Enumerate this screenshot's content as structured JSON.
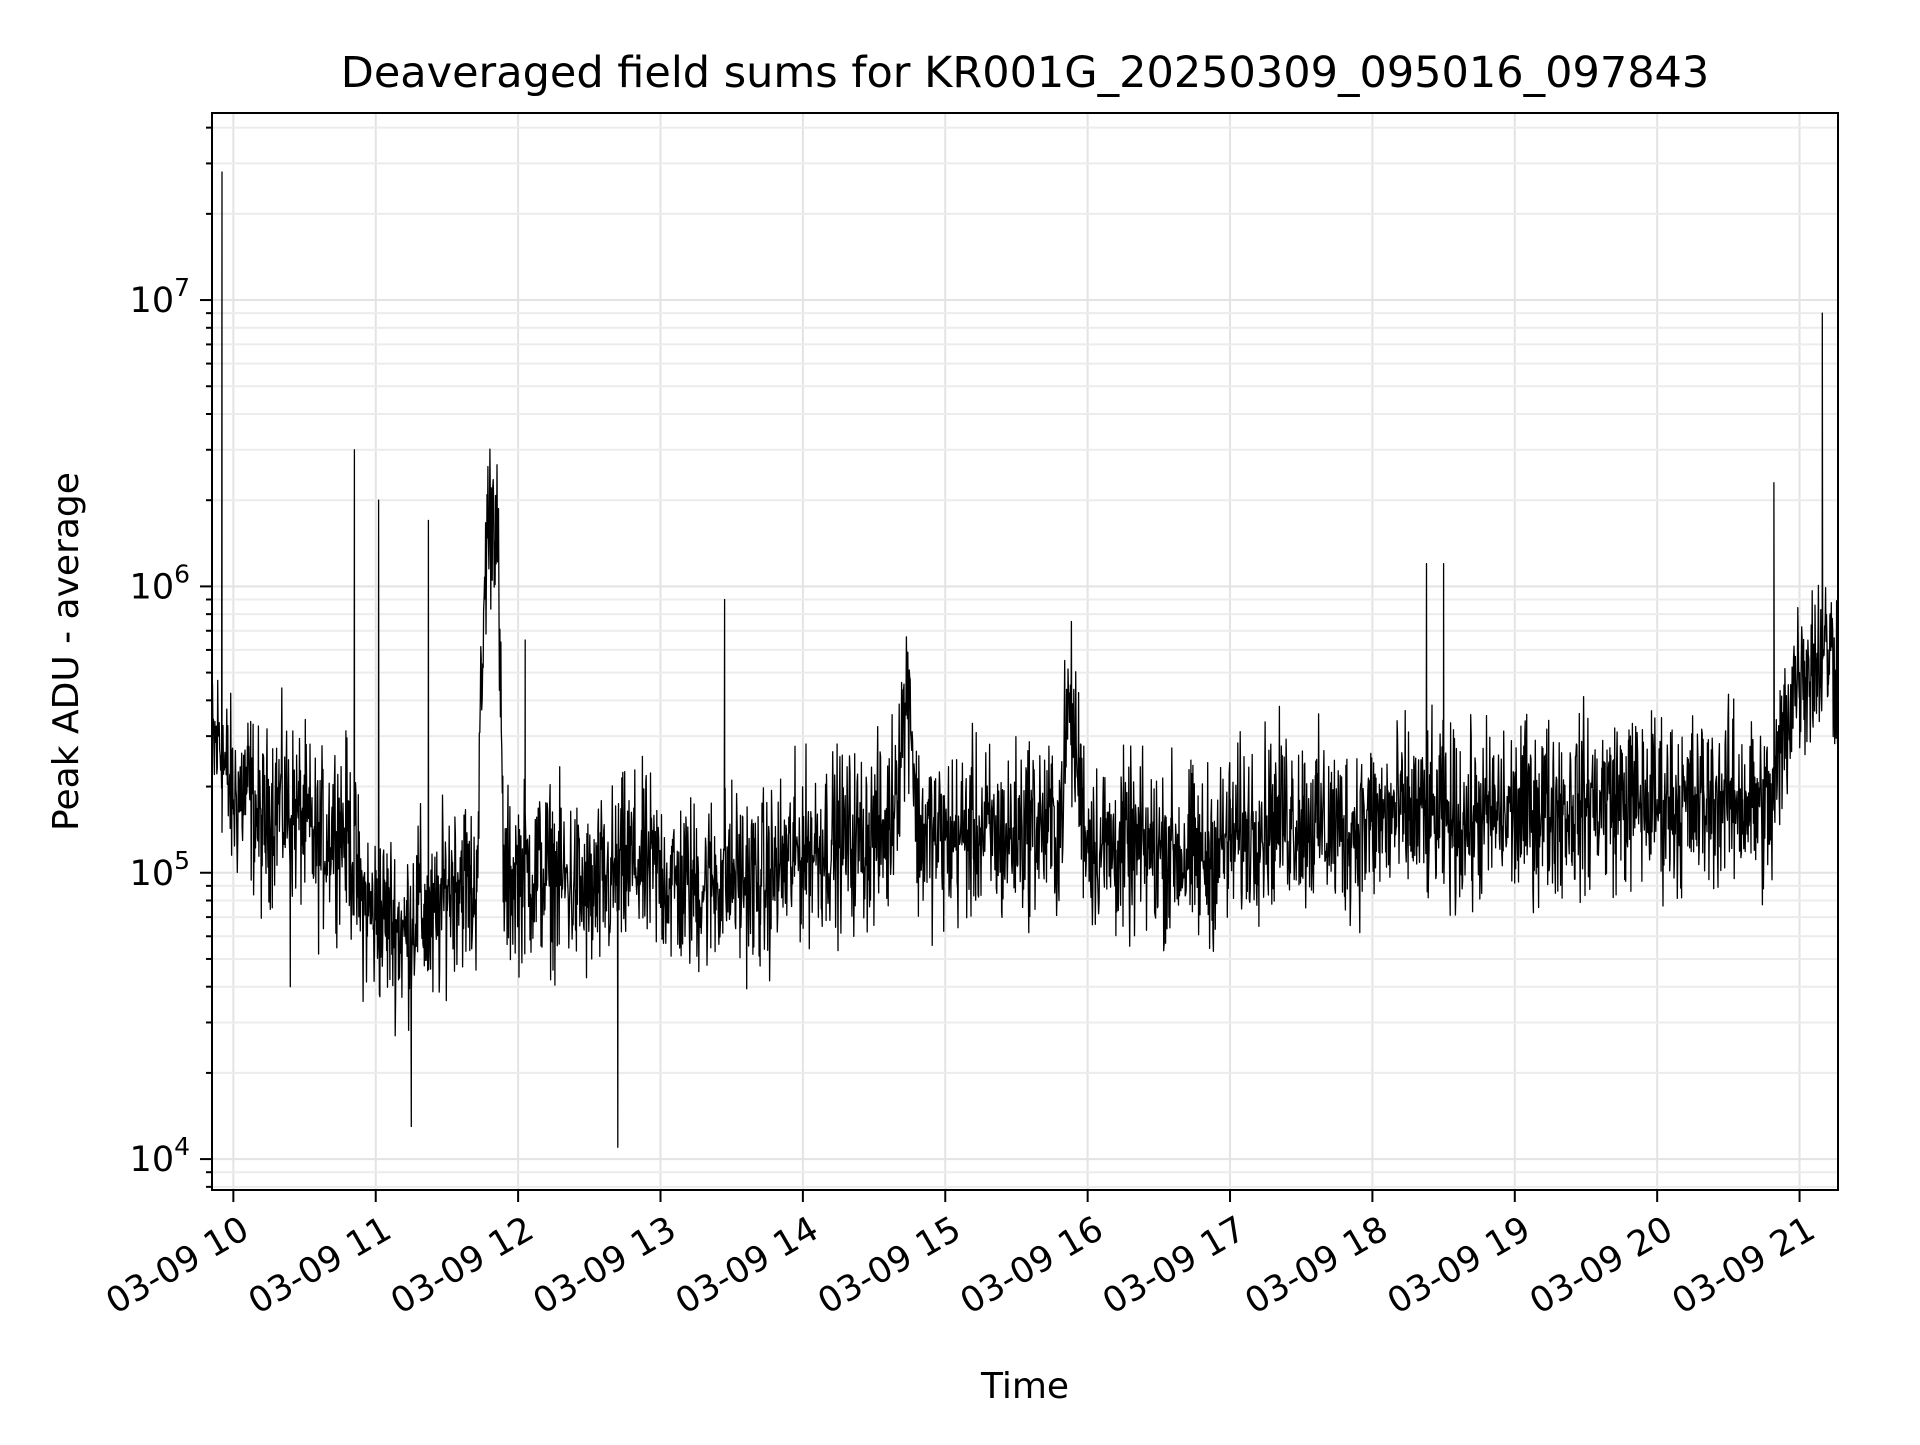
{
  "chart_data": {
    "type": "line",
    "title": "Deaveraged field sums for KR001G_20250309_095016_097843",
    "xlabel": "Time",
    "ylabel": "Peak ADU - average",
    "yscale": "log",
    "grid": true,
    "grid_minor": true,
    "legend": "none",
    "x_tick_labels": [
      "03-09 10",
      "03-09 11",
      "03-09 12",
      "03-09 13",
      "03-09 14",
      "03-09 15",
      "03-09 16",
      "03-09 17",
      "03-09 18",
      "03-09 19",
      "03-09 20",
      "03-09 21"
    ],
    "x_tick_hours": [
      10,
      11,
      12,
      13,
      14,
      15,
      16,
      17,
      18,
      19,
      20,
      21
    ],
    "xlim_hours": [
      9.85,
      21.27
    ],
    "y_tick_values": [
      10000,
      100000,
      1000000,
      10000000
    ],
    "y_tick_base": "10",
    "y_tick_exponents": [
      "4",
      "5",
      "6",
      "7"
    ],
    "ylim": [
      7800,
      45000000
    ],
    "series": [
      {
        "color": "#000000",
        "x_hours": [
          9.85,
          9.9,
          9.92,
          9.95,
          10.0,
          10.1,
          10.2,
          10.3,
          10.4,
          10.5,
          10.6,
          10.7,
          10.8,
          10.85,
          10.9,
          11.0,
          11.02,
          11.1,
          11.2,
          11.25,
          11.3,
          11.37,
          11.4,
          11.5,
          11.6,
          11.7,
          11.78,
          11.85,
          11.9,
          12.0,
          12.05,
          12.2,
          12.4,
          12.5,
          12.7,
          12.8,
          13.0,
          13.1,
          13.3,
          13.45,
          13.5,
          13.7,
          13.9,
          14.0,
          14.2,
          14.4,
          14.6,
          14.75,
          14.8,
          15.0,
          15.2,
          15.4,
          15.6,
          15.8,
          15.87,
          16.0,
          16.2,
          16.4,
          16.6,
          16.8,
          17.0,
          17.2,
          17.4,
          17.6,
          17.8,
          18.0,
          18.2,
          18.38,
          18.42,
          18.5,
          18.7,
          18.8,
          19.0,
          19.2,
          19.4,
          19.6,
          19.8,
          20.0,
          20.2,
          20.4,
          20.6,
          20.72,
          20.8,
          20.82,
          20.95,
          21.0,
          21.1,
          21.16,
          21.2,
          21.27
        ],
        "y_values": [
          250000,
          300000,
          28000000,
          220000,
          180000,
          200000,
          140000,
          180000,
          40000,
          150000,
          120000,
          150000,
          140000,
          3000000,
          80000,
          70000,
          2000000,
          70000,
          60000,
          13000,
          80000,
          1700000,
          60000,
          90000,
          100000,
          80000,
          1600000,
          2000000,
          90000,
          100000,
          650000,
          100000,
          90000,
          80000,
          11000,
          110000,
          100000,
          90000,
          90000,
          900000,
          100000,
          90000,
          110000,
          120000,
          130000,
          130000,
          140000,
          480000,
          140000,
          130000,
          140000,
          130000,
          150000,
          140000,
          400000,
          130000,
          120000,
          120000,
          120000,
          110000,
          130000,
          150000,
          160000,
          150000,
          140000,
          150000,
          160000,
          1200000,
          160000,
          1200000,
          150000,
          160000,
          160000,
          170000,
          170000,
          180000,
          180000,
          180000,
          170000,
          180000,
          180000,
          170000,
          160000,
          2300000,
          450000,
          500000,
          550000,
          9000000,
          600000,
          550000
        ]
      }
    ]
  }
}
